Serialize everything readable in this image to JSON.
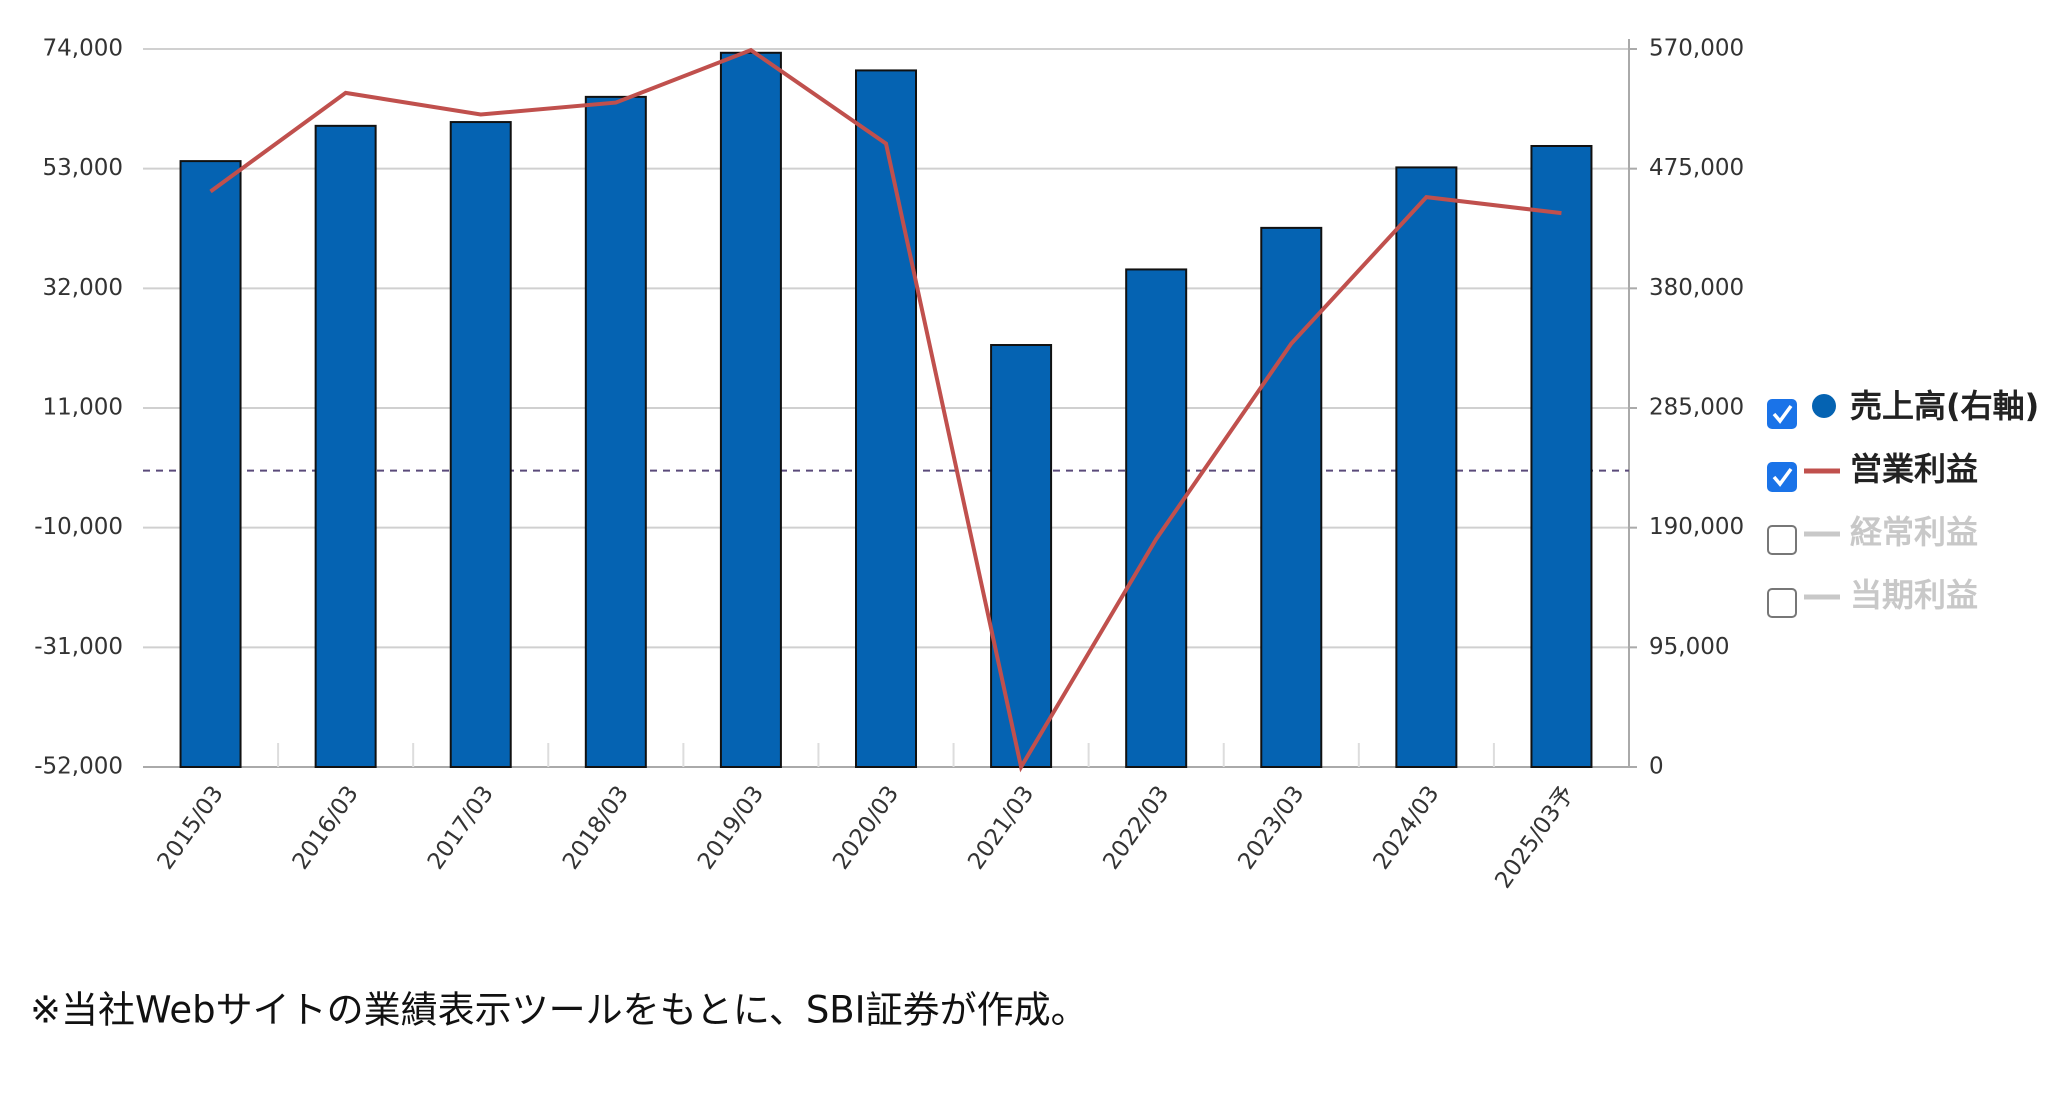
{
  "chart_data": {
    "type": "bar_line",
    "categories": [
      "2015/03",
      "2016/03",
      "2017/03",
      "2018/03",
      "2019/03",
      "2020/03",
      "2021/03",
      "2022/03",
      "2023/03",
      "2024/03",
      "2025/03予"
    ],
    "series": [
      {
        "name": "売上高(右軸)",
        "type": "bar",
        "axis": "y2",
        "color": "#0563b2",
        "checked": true,
        "values": [
          481000,
          509000,
          512000,
          532000,
          567000,
          553000,
          335000,
          395000,
          428000,
          476000,
          493000
        ]
      },
      {
        "name": "営業利益",
        "type": "line",
        "axis": "y",
        "color": "#c0504d",
        "checked": true,
        "values": [
          49000,
          66300,
          62500,
          64600,
          73800,
          57400,
          -52000,
          -12000,
          22300,
          48000,
          45200
        ]
      },
      {
        "name": "経常利益",
        "checked": false,
        "color": "#c8c8c8"
      },
      {
        "name": "当期利益",
        "checked": false,
        "color": "#c8c8c8"
      }
    ],
    "ylim": [
      -52000,
      74000
    ],
    "yticks": [
      {
        "value": -52000,
        "label": "-52,000"
      },
      {
        "value": -31000,
        "label": "-31,000"
      },
      {
        "value": -10000,
        "label": "-10,000"
      },
      {
        "value": 11000,
        "label": "11,000"
      },
      {
        "value": 32000,
        "label": "32,000"
      },
      {
        "value": 53000,
        "label": "53,000"
      },
      {
        "value": 74000,
        "label": "74,000"
      }
    ],
    "y2lim": [
      0,
      570000
    ],
    "y2ticks": [
      0,
      {
        "value": 95000,
        "label": "95,000"
      },
      {
        "value": 190000,
        "label": "190,000"
      },
      {
        "value": 285000,
        "label": "285,000"
      },
      {
        "value": 380000,
        "label": "380,000"
      },
      {
        "value": 475000,
        "label": "475,000"
      },
      {
        "value": 570000,
        "label": "570,000"
      }
    ],
    "grid": true,
    "zero_line": true,
    "legend": "right",
    "footnote": "※当社Webサイトの業績表示ツールをもとに、SBI証券が作成。"
  }
}
